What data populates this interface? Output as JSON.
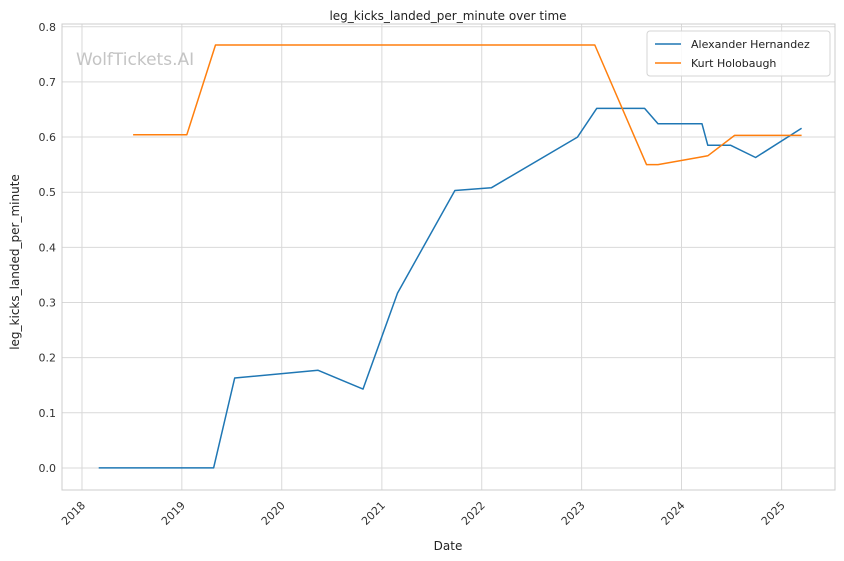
{
  "chart_data": {
    "type": "line",
    "title": "leg_kicks_landed_per_minute over time",
    "xlabel": "Date",
    "ylabel": "leg_kicks_landed_per_minute",
    "watermark": "WolfTickets.AI",
    "x_ticks": [
      "2018",
      "2019",
      "2020",
      "2021",
      "2022",
      "2023",
      "2024",
      "2025"
    ],
    "y_ticks": [
      "0.0",
      "0.1",
      "0.2",
      "0.3",
      "0.4",
      "0.5",
      "0.6",
      "0.7",
      "0.8"
    ],
    "xlim": [
      "2017-10-20",
      "2025-07-15"
    ],
    "ylim": [
      -0.04,
      0.805
    ],
    "grid": true,
    "legend_position": "top-right",
    "series": [
      {
        "name": "Alexander Hernandez",
        "color": "#1f77b4",
        "points": [
          {
            "x": "2018-03-03",
            "y": 0.0
          },
          {
            "x": "2019-04-27",
            "y": 0.0
          },
          {
            "x": "2019-07-13",
            "y": 0.163
          },
          {
            "x": "2020-05-13",
            "y": 0.177
          },
          {
            "x": "2020-10-24",
            "y": 0.143
          },
          {
            "x": "2021-02-27",
            "y": 0.317
          },
          {
            "x": "2021-09-25",
            "y": 0.503
          },
          {
            "x": "2022-02-05",
            "y": 0.508
          },
          {
            "x": "2022-12-17",
            "y": 0.6
          },
          {
            "x": "2023-02-25",
            "y": 0.652
          },
          {
            "x": "2023-08-19",
            "y": 0.652
          },
          {
            "x": "2023-10-07",
            "y": 0.624
          },
          {
            "x": "2024-03-16",
            "y": 0.624
          },
          {
            "x": "2024-04-06",
            "y": 0.585
          },
          {
            "x": "2024-06-29",
            "y": 0.585
          },
          {
            "x": "2024-09-28",
            "y": 0.563
          },
          {
            "x": "2025-03-15",
            "y": 0.616
          }
        ]
      },
      {
        "name": "Kurt Holobaugh",
        "color": "#ff7f0e",
        "points": [
          {
            "x": "2018-07-07",
            "y": 0.604
          },
          {
            "x": "2019-01-19",
            "y": 0.604
          },
          {
            "x": "2019-05-04",
            "y": 0.767
          },
          {
            "x": "2023-02-18",
            "y": 0.767
          },
          {
            "x": "2023-08-26",
            "y": 0.55
          },
          {
            "x": "2023-10-07",
            "y": 0.55
          },
          {
            "x": "2024-03-02",
            "y": 0.563
          },
          {
            "x": "2024-04-06",
            "y": 0.566
          },
          {
            "x": "2024-07-13",
            "y": 0.603
          },
          {
            "x": "2025-03-15",
            "y": 0.603
          }
        ]
      }
    ]
  }
}
